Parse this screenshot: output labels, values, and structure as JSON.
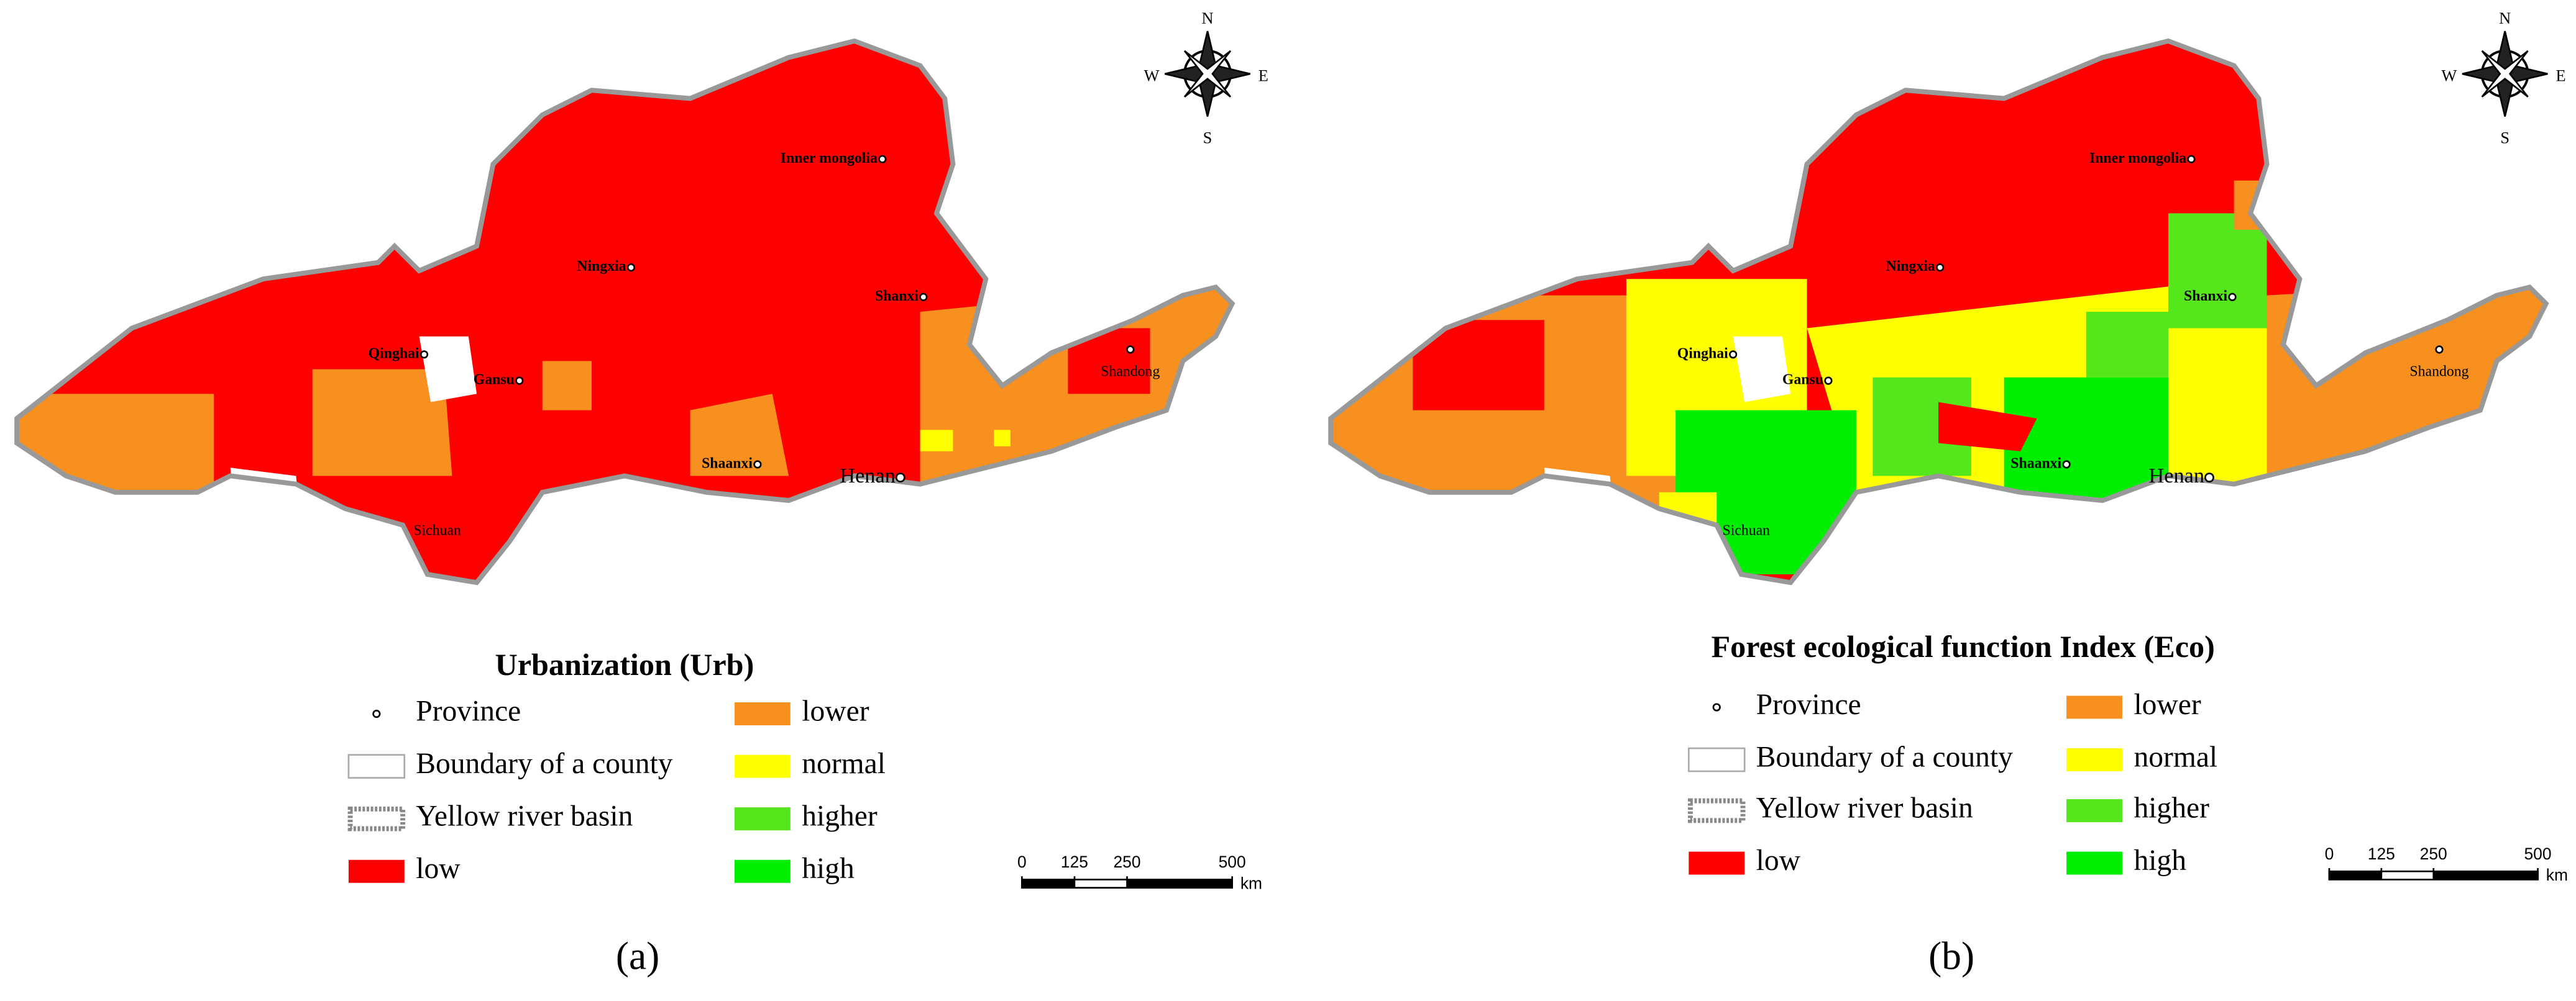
{
  "panels": [
    {
      "label": "(a)",
      "title": "Urbanization (Urb)",
      "provinces": [
        "Inner mongolia",
        "Ningxia",
        "Shanxi",
        "Qinghai",
        "Gansu",
        "Shaanxi",
        "Henan",
        "Shandong",
        "Sichuan"
      ],
      "compass": {
        "north": "N",
        "east": "E",
        "south": "S",
        "west": "W"
      },
      "legend": [
        {
          "label": "Province"
        },
        {
          "label": "Boundary of a county"
        },
        {
          "label": "Yellow river basin"
        },
        {
          "label": "low",
          "color": "#ff0000"
        },
        {
          "label": "lower",
          "color": "#f7901e"
        },
        {
          "label": "normal",
          "color": "#ffff00"
        },
        {
          "label": "higher",
          "color": "#55e61c"
        },
        {
          "label": "high",
          "color": "#00ee00"
        }
      ],
      "scale": {
        "ticks": [
          0,
          125,
          250,
          500
        ],
        "unit": "km"
      }
    },
    {
      "label": "(b)",
      "title": "Forest ecological function Index (Eco)",
      "provinces": [
        "Inner mongolia",
        "Ningxia",
        "Shanxi",
        "Qinghai",
        "Gansu",
        "Shaanxi",
        "Henan",
        "Shandong",
        "Sichuan"
      ],
      "compass": {
        "north": "N",
        "east": "E",
        "south": "S",
        "west": "W"
      },
      "legend": [
        {
          "label": "Province"
        },
        {
          "label": "Boundary of a county"
        },
        {
          "label": "Yellow river basin"
        },
        {
          "label": "low",
          "color": "#ff0000"
        },
        {
          "label": "lower",
          "color": "#f7901e"
        },
        {
          "label": "normal",
          "color": "#ffff00"
        },
        {
          "label": "higher",
          "color": "#55e61c"
        },
        {
          "label": "high",
          "color": "#00ee00"
        }
      ],
      "scale": {
        "ticks": [
          0,
          125,
          250,
          500
        ],
        "unit": "km"
      }
    }
  ]
}
